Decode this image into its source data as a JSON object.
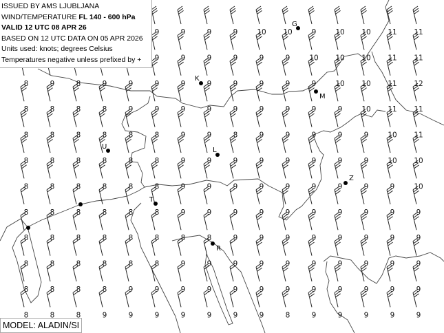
{
  "header": {
    "issued": "ISSUED BY AMS LJUBLJANA",
    "product_prefix": "WIND/TEMPERATURE",
    "level": "FL 140 - 600 hPa",
    "valid": "VALID 12 UTC 08 APR 26",
    "based_on": "BASED ON 12 UTC DATA ON 05 APR 2026",
    "units": "Units used: knots; degrees Celsius",
    "note": "Temperatures negative unless prefixed by +"
  },
  "model": "MODEL: ALADIN/SI",
  "colors": {
    "background": "#ffffff",
    "lines": "#333333",
    "text": "#111111"
  },
  "temperature_grid": [
    [
      null,
      null,
      null,
      null,
      null,
      9,
      9,
      9,
      9,
      10,
      10,
      9,
      10,
      10,
      11,
      11
    ],
    [
      null,
      null,
      null,
      null,
      null,
      9,
      9,
      9,
      9,
      9,
      9,
      10,
      10,
      10,
      11,
      11
    ],
    [
      8,
      9,
      8,
      9,
      9,
      9,
      9,
      9,
      9,
      9,
      9,
      9,
      10,
      10,
      11,
      12
    ],
    [
      8,
      8,
      8,
      8,
      9,
      9,
      9,
      9,
      9,
      9,
      9,
      9,
      9,
      10,
      11,
      11
    ],
    [
      8,
      8,
      8,
      8,
      8,
      8,
      9,
      9,
      8,
      9,
      9,
      9,
      9,
      9,
      10,
      11
    ],
    [
      8,
      8,
      8,
      8,
      8,
      8,
      9,
      9,
      9,
      9,
      9,
      9,
      9,
      9,
      10,
      10
    ],
    [
      8,
      8,
      8,
      8,
      8,
      8,
      9,
      9,
      9,
      9,
      9,
      9,
      9,
      9,
      9,
      10
    ],
    [
      8,
      8,
      8,
      8,
      8,
      8,
      9,
      9,
      9,
      9,
      9,
      9,
      9,
      9,
      9,
      9
    ],
    [
      8,
      8,
      8,
      8,
      8,
      8,
      8,
      8,
      9,
      9,
      9,
      9,
      9,
      9,
      9,
      9
    ],
    [
      8,
      8,
      8,
      8,
      8,
      8,
      9,
      9,
      9,
      9,
      9,
      9,
      9,
      9,
      9,
      9
    ],
    [
      8,
      8,
      8,
      8,
      9,
      9,
      9,
      9,
      9,
      9,
      9,
      9,
      9,
      9,
      9,
      9
    ],
    [
      8,
      8,
      8,
      9,
      9,
      9,
      9,
      9,
      9,
      9,
      8,
      9,
      9,
      9,
      9,
      9
    ]
  ],
  "wind_barb_feathers_note_free": true,
  "stations": [
    {
      "label": "G"
    },
    {
      "label": "K"
    },
    {
      "label": "M"
    },
    {
      "label": "U"
    },
    {
      "label": "L"
    },
    {
      "label": "Z"
    },
    {
      "label": "T"
    },
    {
      "label": "R"
    }
  ]
}
